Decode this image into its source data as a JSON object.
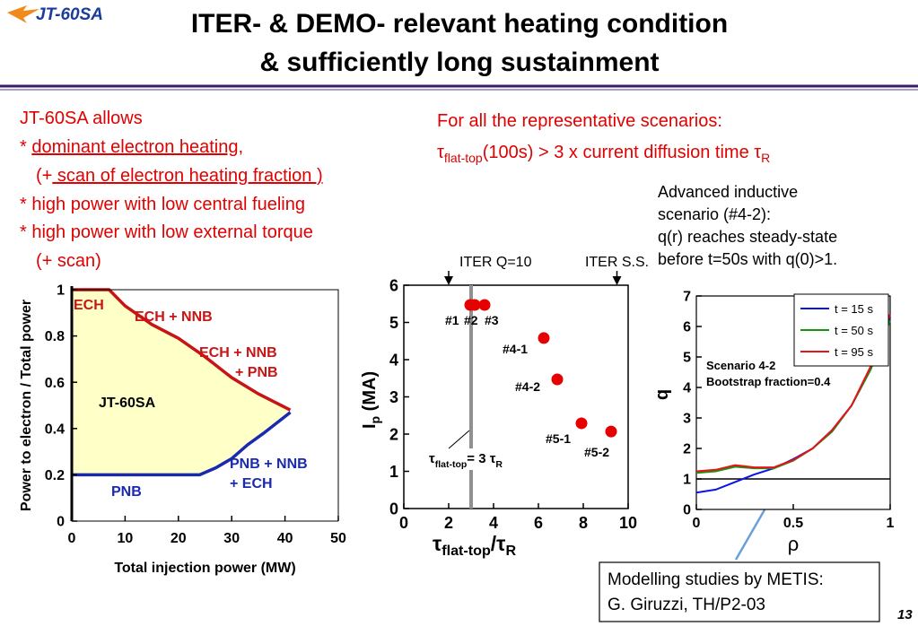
{
  "header": {
    "logo": "JT-60SA",
    "title_line1": "ITER- & DEMO- relevant heating condition",
    "title_line2": "& sufficiently long sustainment"
  },
  "left_text": [
    [
      {
        "text": "JT-60SA allows"
      }
    ],
    [
      {
        "text": "* "
      },
      {
        "text": "dominant electron heating,",
        "underline": true
      }
    ],
    [
      {
        "text": "(+"
      },
      {
        "text": " scan of electron heating fraction )",
        "underline": true
      }
    ],
    [
      {
        "text": "* high power with low central fueling"
      }
    ],
    [
      {
        "text": "* high power with low external torque"
      }
    ],
    [
      {
        "text": "(+ scan)"
      }
    ]
  ],
  "right_text": {
    "line1": [
      {
        "text": "For all the representative scenarios:"
      }
    ],
    "line2": [
      {
        "text": "τ"
      },
      {
        "text": "flat-top",
        "sub": true
      },
      {
        "text": "(100s) > 3 x current diffusion time τ"
      },
      {
        "text": "R",
        "sub": true
      }
    ]
  },
  "scenario_text": [
    "Advanced inductive",
    "scenario (#4-2):",
    "q(r) reaches steady-state",
    "before t=50s with q(0)>1."
  ],
  "callout": [
    "Modelling studies by METIS:",
    "G. Giruzzi, TH/P2-03"
  ],
  "page_number": "13",
  "chart_data": [
    {
      "type": "area",
      "xlabel": "Total injection power (MW)",
      "ylabel": "Power to electron / Total power",
      "xlim": [
        0,
        50
      ],
      "ylim": [
        0,
        1
      ],
      "xticks": [
        0,
        10,
        20,
        30,
        40,
        50
      ],
      "yticks": [
        0,
        0.2,
        0.4,
        0.6,
        0.8,
        1
      ],
      "fill_color": "#ffffc8",
      "series": [
        {
          "color": "#c81414",
          "x": [
            0,
            7,
            10,
            15,
            20,
            25,
            30,
            35,
            41
          ],
          "values": [
            1,
            1,
            0.93,
            0.85,
            0.79,
            0.71,
            0.62,
            0.55,
            0.48
          ]
        },
        {
          "color": "#1a2ab0",
          "x": [
            0,
            24,
            27,
            30,
            33,
            36,
            41
          ],
          "values": [
            0.2,
            0.2,
            0.23,
            0.27,
            0.33,
            0.38,
            0.47
          ]
        }
      ],
      "annotations": [
        {
          "text": "ECH",
          "color": "#c81414"
        },
        {
          "text": "ECH + NNB",
          "color": "#c81414"
        },
        {
          "text": "ECH + NNB",
          "color": "#c81414"
        },
        {
          "text": "+ PNB",
          "color": "#c81414"
        },
        {
          "text": "JT-60SA",
          "color": "#000000"
        },
        {
          "text": "PNB + NNB",
          "color": "#1a2ab0"
        },
        {
          "text": "+ ECH",
          "color": "#1a2ab0"
        },
        {
          "text": "PNB",
          "color": "#1a2ab0"
        }
      ]
    },
    {
      "type": "scatter",
      "xlabel": [
        {
          "text": "τ"
        },
        {
          "text": "flat-top",
          "sub": true
        },
        {
          "text": "/τ"
        },
        {
          "text": "R",
          "sub": true
        }
      ],
      "ylabel": [
        {
          "text": "I"
        },
        {
          "text": "p",
          "sub": true
        },
        {
          "text": " (MA)"
        }
      ],
      "xlim": [
        0,
        10
      ],
      "ylim": [
        0,
        6
      ],
      "xticks": [
        0,
        2,
        4,
        6,
        8,
        10
      ],
      "yticks": [
        0,
        1,
        2,
        3,
        4,
        5,
        6
      ],
      "color": "#e60000",
      "x": [
        2.96,
        3.16,
        3.6,
        6.24,
        6.84,
        7.92,
        9.24
      ],
      "values": [
        5.47,
        5.47,
        5.47,
        4.58,
        3.47,
        2.29,
        2.07
      ],
      "point_labels": [
        "#1",
        "#2",
        "#3",
        "#4-1",
        "#4-2",
        "#5-1",
        "#5-2"
      ],
      "reference_line": {
        "x": 3,
        "color": "#909090",
        "label": [
          {
            "text": "τ"
          },
          {
            "text": "flat-top",
            "sub": true
          },
          {
            "text": "= 3 τ"
          },
          {
            "text": "R",
            "sub": true
          }
        ]
      },
      "arrows": [
        {
          "x": 2,
          "label": "ITER Q=10"
        },
        {
          "x": 9.5,
          "label": "ITER S.S."
        }
      ]
    },
    {
      "type": "line",
      "xlabel": "ρ",
      "ylabel": "q",
      "xlim": [
        0,
        1
      ],
      "ylim": [
        0,
        7
      ],
      "xticks": [
        0,
        0.5,
        1
      ],
      "yticks": [
        0,
        1,
        2,
        3,
        4,
        5,
        6,
        7
      ],
      "legend": "upper right",
      "x": [
        0,
        0.1,
        0.2,
        0.3,
        0.4,
        0.5,
        0.6,
        0.7,
        0.8,
        0.9,
        1
      ],
      "series": [
        {
          "name": "t = 15 s",
          "color": "#0a14e6",
          "values": [
            0.55,
            0.65,
            0.9,
            1.15,
            1.35,
            1.65,
            2.0,
            2.6,
            3.4,
            4.6,
            6.3
          ]
        },
        {
          "name": "t = 50 s",
          "color": "#149614",
          "values": [
            1.2,
            1.25,
            1.4,
            1.35,
            1.35,
            1.6,
            2.0,
            2.55,
            3.4,
            4.6,
            6.2
          ]
        },
        {
          "name": "t = 95 s",
          "color": "#e61414",
          "values": [
            1.25,
            1.3,
            1.45,
            1.38,
            1.38,
            1.62,
            2.0,
            2.6,
            3.4,
            4.7,
            6.4
          ]
        }
      ],
      "hline": {
        "y": 1,
        "color": "#000000"
      },
      "annotations": [
        "Scenario 4-2",
        "Bootstrap fraction=0.4"
      ]
    }
  ]
}
